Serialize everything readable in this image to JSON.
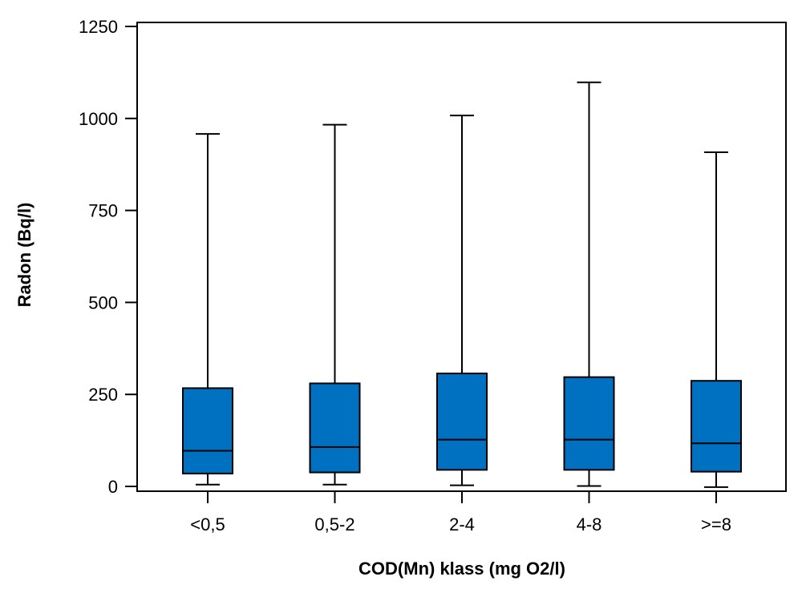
{
  "chart_data": {
    "type": "box",
    "xlabel": "COD(Mn) klass (mg O2/l)",
    "ylabel": "Radon (Bq/l)",
    "ylim": [
      0,
      1250
    ],
    "yticks": [
      "0",
      "250",
      "500",
      "750",
      "1000",
      "1250"
    ],
    "categories": [
      "<0,5",
      "0,5-2",
      "2-4",
      "4-8",
      ">=8"
    ],
    "boxes": [
      {
        "category": "<0,5",
        "min": 5,
        "q1": 35,
        "median": 97,
        "q3": 267,
        "max": 958
      },
      {
        "category": "0,5-2",
        "min": 5,
        "q1": 38,
        "median": 107,
        "q3": 280,
        "max": 983
      },
      {
        "category": "2-4",
        "min": 3,
        "q1": 45,
        "median": 127,
        "q3": 307,
        "max": 1008
      },
      {
        "category": "4-8",
        "min": 1,
        "q1": 45,
        "median": 127,
        "q3": 297,
        "max": 1098
      },
      {
        "category": ">=8",
        "min": -2,
        "q1": 40,
        "median": 117,
        "q3": 287,
        "max": 908
      }
    ],
    "colors": {
      "box_fill": "#0070C0",
      "line": "#000000"
    },
    "grid": false,
    "legend": "none"
  }
}
